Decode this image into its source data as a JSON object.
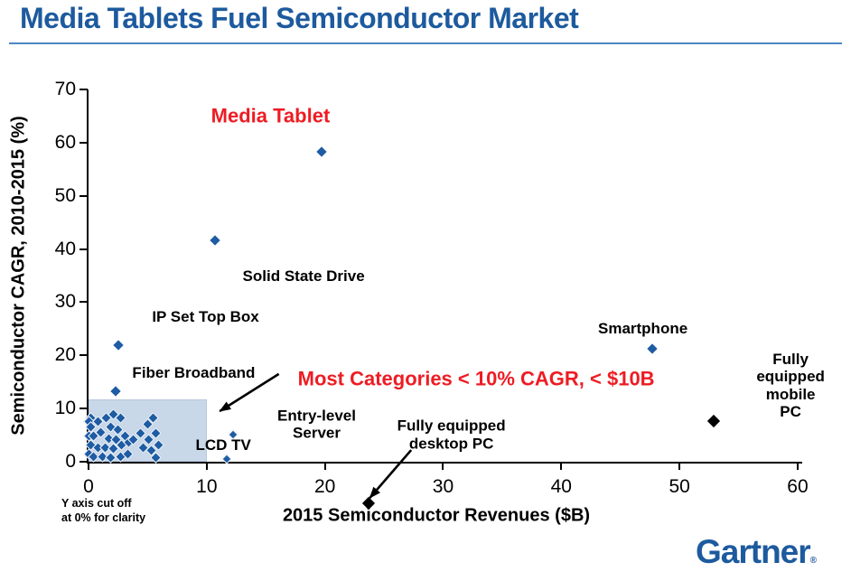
{
  "footer": {
    "logo_text": "Gartner",
    "registered_mark": "®"
  },
  "note": "Y axis cut off\nat 0% for clarity",
  "colors": {
    "title_blue": "#1d5a9e",
    "rule_blue": "#4a86c5",
    "logo_blue": "#1d5a9e",
    "point_blue": "#1e5ca3",
    "accent_red": "#ee1c23",
    "highlight_fill": "#c9d8e9",
    "axis_black": "#000000"
  },
  "chart_data": {
    "type": "scatter",
    "title": "Media Tablets Fuel Semiconductor Market",
    "xlabel": "2015 Semiconductor Revenues ($B)",
    "ylabel": "Semiconductor CAGR, 2010-2015 (%)",
    "xlim": [
      0,
      60
    ],
    "ylim": [
      0,
      70
    ],
    "xticks": [
      0,
      10,
      20,
      30,
      40,
      50,
      60
    ],
    "yticks": [
      0,
      10,
      20,
      30,
      40,
      50,
      60,
      70
    ],
    "grid": false,
    "named_points": [
      {
        "label": "Media Tablet",
        "x": 19.7,
        "y": 58.3,
        "color": "blue"
      },
      {
        "label": "Solid State Drive",
        "x": 10.7,
        "y": 41.7,
        "color": "blue"
      },
      {
        "label": "IP Set Top Box",
        "x": 2.5,
        "y": 21.9,
        "color": "blue"
      },
      {
        "label": "Fiber Broadband",
        "x": 2.3,
        "y": 13.3,
        "color": "blue"
      },
      {
        "label": "Smartphone",
        "x": 47.7,
        "y": 21.2,
        "color": "blue"
      },
      {
        "label": "Fully equipped mobile PC",
        "x": 52.9,
        "y": 7.6,
        "color": "black"
      },
      {
        "label": "Fully equipped desktop PC",
        "x": 23.7,
        "y": -7.8,
        "color": "black"
      }
    ],
    "unlabeled_points": [
      [
        12.2,
        5.1
      ],
      [
        11.7,
        0.5
      ]
    ],
    "cluster_points": [
      [
        0.2,
        8.3
      ],
      [
        0.0,
        7.5
      ],
      [
        0.8,
        7.5
      ],
      [
        0.2,
        6.5
      ],
      [
        1.5,
        8.2
      ],
      [
        2.1,
        9.0
      ],
      [
        2.7,
        8.2
      ],
      [
        1.9,
        6.6
      ],
      [
        2.5,
        6.1
      ],
      [
        0.0,
        4.9
      ],
      [
        0.4,
        4.8
      ],
      [
        1.0,
        5.6
      ],
      [
        1.7,
        4.4
      ],
      [
        2.3,
        4.1
      ],
      [
        3.1,
        4.9
      ],
      [
        0.2,
        3.1
      ],
      [
        0.8,
        2.7
      ],
      [
        1.4,
        2.7
      ],
      [
        2.1,
        2.4
      ],
      [
        2.8,
        3.1
      ],
      [
        0.0,
        1.5
      ],
      [
        0.4,
        1.0
      ],
      [
        1.2,
        1.0
      ],
      [
        1.9,
        0.7
      ],
      [
        2.7,
        1.0
      ],
      [
        3.3,
        1.5
      ],
      [
        3.4,
        3.6
      ],
      [
        3.8,
        4.1
      ],
      [
        4.4,
        5.3
      ],
      [
        5.0,
        7.0
      ],
      [
        5.5,
        8.2
      ],
      [
        5.7,
        5.3
      ],
      [
        5.1,
        4.1
      ],
      [
        4.6,
        2.7
      ],
      [
        5.3,
        2.2
      ],
      [
        5.9,
        3.1
      ],
      [
        5.7,
        0.7
      ]
    ],
    "highlight_region": {
      "x0": 0,
      "y0": 0,
      "x1": 10,
      "y1": 11.8
    },
    "labels": [
      {
        "text": "Media Tablet",
        "x": 15.4,
        "y": 65.1,
        "color": "red",
        "size": 22
      },
      {
        "text": "Most Categories < 10% CAGR, < $10B",
        "x": 32.8,
        "y": 15.6,
        "color": "red",
        "size": 22
      },
      {
        "text": "Solid State Drive",
        "x": 18.2,
        "y": 34.8,
        "color": "black",
        "size": 17
      },
      {
        "text": "IP Set Top Box",
        "x": 9.9,
        "y": 27.2,
        "color": "black",
        "size": 17
      },
      {
        "text": "Fiber Broadband",
        "x": 8.9,
        "y": 16.6,
        "color": "black",
        "size": 17
      },
      {
        "text": "Smartphone",
        "x": 46.9,
        "y": 25.0,
        "color": "black",
        "size": 17
      },
      {
        "text": "Fully equipped\nmobile PC",
        "x": 59.4,
        "y": 14.3,
        "color": "black",
        "size": 17
      },
      {
        "text": "Entry-level\nServer",
        "x": 19.3,
        "y": 7.0,
        "color": "black",
        "size": 17
      },
      {
        "text": "Fully equipped\ndesktop PC",
        "x": 30.7,
        "y": 5.1,
        "color": "black",
        "size": 17
      },
      {
        "text": "LCD TV",
        "x": 11.4,
        "y": 3.1,
        "color": "black",
        "size": 17
      }
    ],
    "arrows": [
      {
        "x1": 16.1,
        "y1": 16.5,
        "x2": 11.1,
        "y2": 9.5
      },
      {
        "x1": 27.3,
        "y1": 2.2,
        "x2": 23.8,
        "y2": -6.8
      }
    ]
  }
}
